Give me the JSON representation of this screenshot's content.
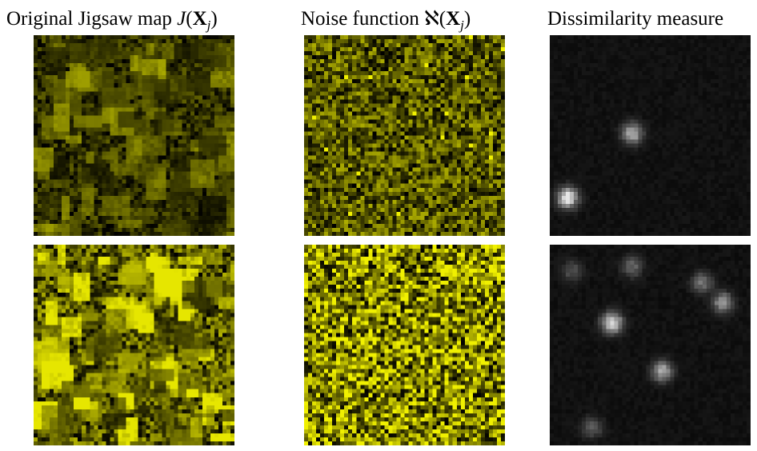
{
  "figure": {
    "column_titles": [
      {
        "text": "Original Jigsaw map",
        "math": "J(Xⱼ)",
        "math_parts": {
          "func": "J",
          "open": "(",
          "var": "X",
          "sub": "j",
          "close": ")"
        }
      },
      {
        "text": "Noise function",
        "math": "ℵ(Xⱼ)",
        "math_parts": {
          "func": "ℵ",
          "open": "(",
          "var": "X",
          "sub": "j",
          "close": ")"
        }
      },
      {
        "text": "Dissimilarity measure",
        "math": ""
      }
    ],
    "colors": {
      "jigsaw": "#e6e600",
      "noise": "#f0f000",
      "dissimilarity": "#ffffff",
      "background": "#000000"
    },
    "rows": [
      {
        "brightness_jigsaw": 0.42,
        "brightness_noise": 0.45,
        "hotspots": [
          [
            0.08,
            0.8,
            1.0
          ],
          [
            0.4,
            0.48,
            0.75
          ]
        ]
      },
      {
        "brightness_jigsaw": 0.78,
        "brightness_noise": 0.7,
        "hotspots": [
          [
            0.3,
            0.38,
            0.95
          ],
          [
            0.55,
            0.62,
            0.7
          ],
          [
            0.85,
            0.28,
            0.6
          ],
          [
            0.75,
            0.18,
            0.45
          ],
          [
            0.4,
            0.1,
            0.4
          ],
          [
            0.2,
            0.9,
            0.35
          ],
          [
            0.1,
            0.12,
            0.3
          ]
        ]
      }
    ]
  }
}
